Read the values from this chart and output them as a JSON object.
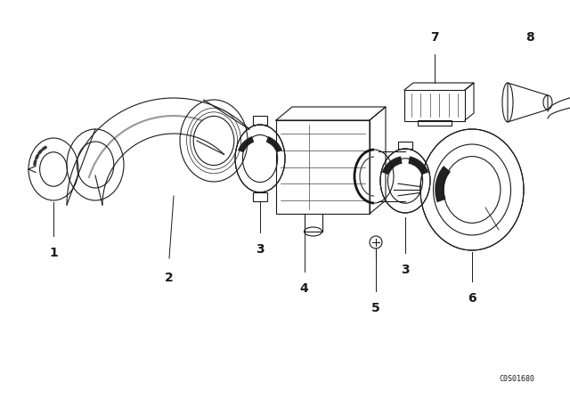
{
  "background_color": "#ffffff",
  "line_color": "#1a1a1a",
  "fig_width": 6.4,
  "fig_height": 4.48,
  "dpi": 100,
  "watermark": "C0S01680",
  "font_size": 9,
  "line_width": 0.8
}
